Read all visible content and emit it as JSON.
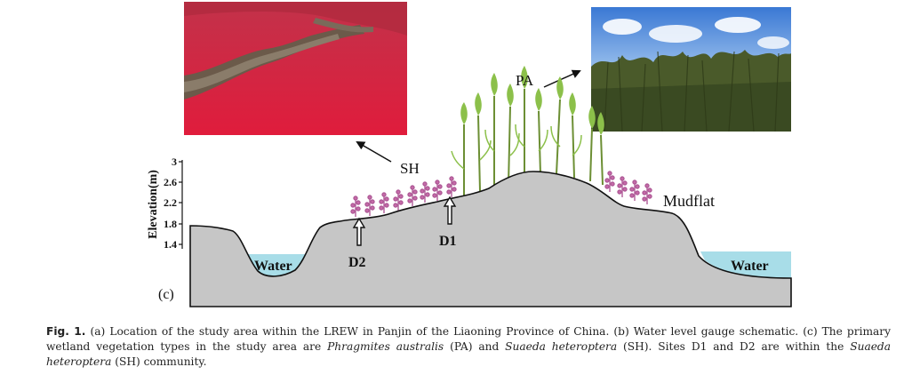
{
  "figure": {
    "panel_label": "(c)",
    "y_axis": {
      "title": "Elevation(m)",
      "ticks": [
        "3",
        "2.6",
        "2.2",
        "1.8",
        "1.4"
      ]
    },
    "labels": {
      "sh": "SH",
      "pa": "PA",
      "mudflat": "Mudflat",
      "water_left": "Water",
      "water_right": "Water",
      "d1": "D1",
      "d2": "D2"
    },
    "photos": {
      "sh_photo": "Suaeda heteroptera red marsh photograph",
      "pa_photo": "Phragmites australis reed photograph"
    },
    "colors": {
      "ground": "#c6c6c6",
      "water": "#a8dde8",
      "sh_plants": "#c66aa8",
      "pa_plants": "#7fb040",
      "sky": "#3d7ed6"
    }
  },
  "caption": {
    "label": "Fig. 1.",
    "p1": "(a) Location of the study area within the LREW in Panjin of the Liaoning Province of China. (b) Water level gauge schematic. (c) The primary wetland vegetation types in the study area are ",
    "pa_name": "Phragmites australis",
    "p2": " (PA) and ",
    "sh_name": "Suaeda heteroptera",
    "p3": " (SH). Sites D1 and D2 are within the ",
    "sh_name2": "Suaeda heteroptera",
    "p4": " (SH) community."
  }
}
